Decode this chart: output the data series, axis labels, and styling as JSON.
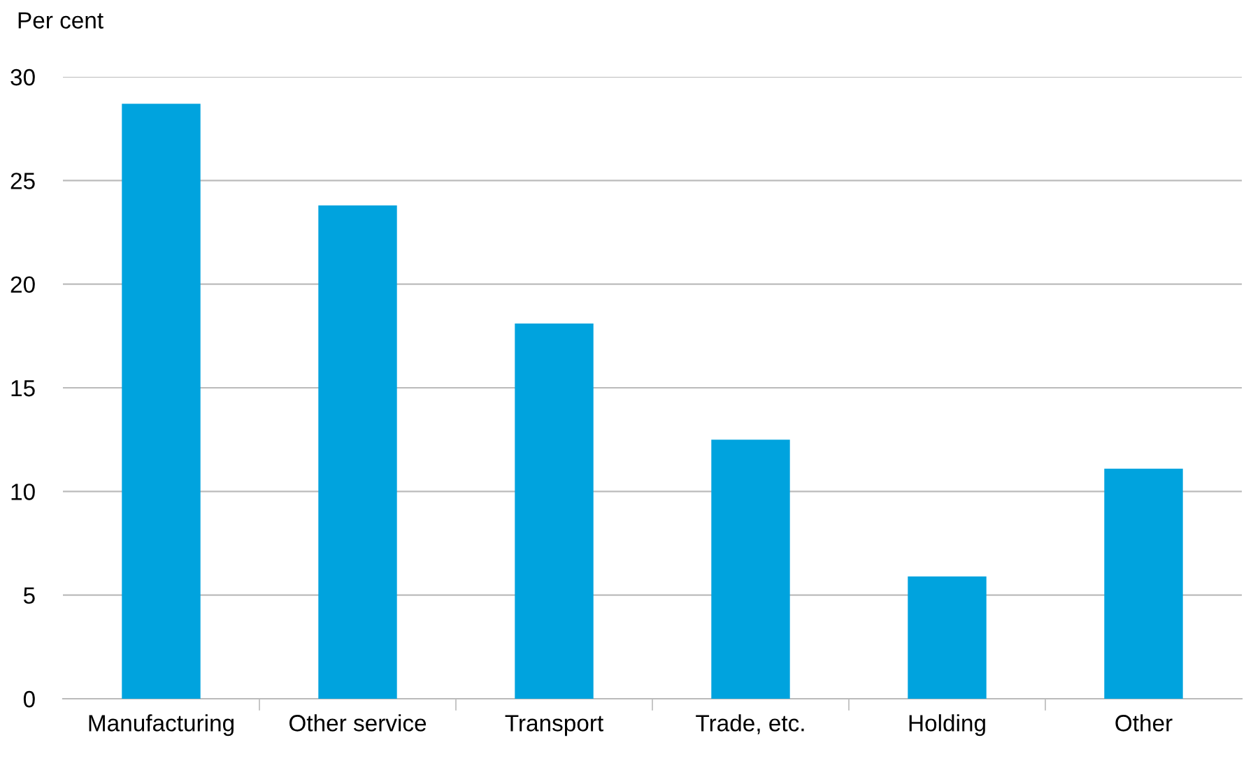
{
  "chart_data": {
    "type": "bar",
    "ylabel": "Per cent",
    "categories": [
      "Manufacturing",
      "Other service",
      "Transport",
      "Trade, etc.",
      "Holding",
      "Other"
    ],
    "values": [
      28.7,
      23.8,
      18.1,
      12.5,
      5.9,
      11.1
    ],
    "color": "#00a3de",
    "ylim": [
      0,
      30
    ],
    "yticks": [
      0,
      5,
      10,
      15,
      20,
      25,
      30
    ],
    "grid": "y",
    "legend": false
  }
}
